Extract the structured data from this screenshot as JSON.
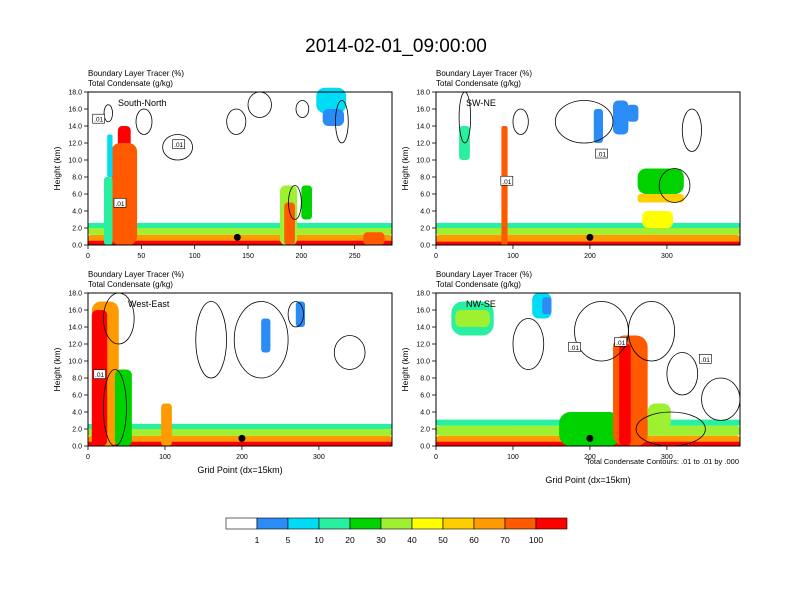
{
  "figure": {
    "title": "2014-02-01_09:00:00",
    "footnote": "Total Condensate Contours: .01 to .01 by .000"
  },
  "colorbar": {
    "colors": [
      "#ffffff",
      "#2b8cf5",
      "#00dcf5",
      "#28f0a0",
      "#00d200",
      "#a0f032",
      "#ffff00",
      "#ffcd00",
      "#ff9b00",
      "#ff5a00",
      "#ff0000"
    ],
    "labels": [
      "1",
      "5",
      "10",
      "20",
      "30",
      "40",
      "50",
      "60",
      "70",
      "100"
    ]
  },
  "chart_data": [
    {
      "type": "heatmap",
      "panel_label": "South-North",
      "subtitle_lines": [
        "Boundary Layer Tracer   (%)",
        "Total Condensate   (g/kg)"
      ],
      "ylabel": "Height (km)",
      "xlabel": "",
      "xlim": [
        0,
        285
      ],
      "ylim": [
        0,
        18
      ],
      "xticks": [
        "0",
        "50",
        "100",
        "150",
        "200",
        "250"
      ],
      "yticks": [
        "0.0",
        "2.0",
        "4.0",
        "6.0",
        "8.0",
        "10.0",
        "12.0",
        "14.0",
        "16.0",
        "18.0"
      ],
      "contour_labels": [
        ".01",
        ".01",
        ".01"
      ],
      "marker_x": 140
    },
    {
      "type": "heatmap",
      "panel_label": "SW-NE",
      "subtitle_lines": [
        "Boundary Layer Tracer   (%)",
        "Total Condensate   (g/kg)"
      ],
      "ylabel": "Height (km)",
      "xlabel": "",
      "xlim": [
        0,
        395
      ],
      "ylim": [
        0,
        18
      ],
      "xticks": [
        "0",
        "100",
        "200",
        "300"
      ],
      "yticks": [
        "0.0",
        "2.0",
        "4.0",
        "6.0",
        "8.0",
        "10.0",
        "12.0",
        "14.0",
        "16.0",
        "18.0"
      ],
      "contour_labels": [
        ".01",
        ".01"
      ],
      "marker_x": 200
    },
    {
      "type": "heatmap",
      "panel_label": "West-East",
      "subtitle_lines": [
        "Boundary Layer Tracer   (%)",
        "Total Condensate   (g/kg)"
      ],
      "ylabel": "Height (km)",
      "xlabel": "Grid Point (dx=15km)",
      "xlim": [
        0,
        395
      ],
      "ylim": [
        0,
        18
      ],
      "xticks": [
        "0",
        "100",
        "200",
        "300"
      ],
      "yticks": [
        "0.0",
        "2.0",
        "4.0",
        "6.0",
        "8.0",
        "10.0",
        "12.0",
        "14.0",
        "16.0",
        "18.0"
      ],
      "contour_labels": [
        ".01"
      ],
      "marker_x": 200
    },
    {
      "type": "heatmap",
      "panel_label": "NW-SE",
      "subtitle_lines": [
        "Boundary Layer Tracer   (%)",
        "Total Condensate   (g/kg)"
      ],
      "ylabel": "Height (km)",
      "xlabel": "Grid Point (dx=15km)",
      "xlim": [
        0,
        395
      ],
      "ylim": [
        0,
        18
      ],
      "xticks": [
        "0",
        "100",
        "200",
        "300"
      ],
      "yticks": [
        "0.0",
        "2.0",
        "4.0",
        "6.0",
        "8.0",
        "10.0",
        "12.0",
        "14.0",
        "16.0",
        "18.0"
      ],
      "contour_labels": [
        ".01",
        ".01",
        ".01"
      ],
      "marker_x": 200
    }
  ]
}
